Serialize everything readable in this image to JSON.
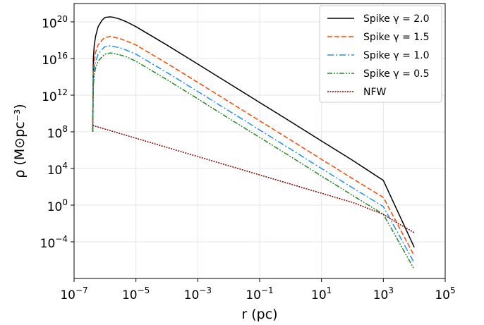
{
  "chart_data": {
    "type": "line",
    "xlabel": "r (pc)",
    "ylabel": "ρ (M⊙pc⁻³)",
    "xscale": "log",
    "yscale": "log",
    "xlim": [
      1e-07,
      100000.0
    ],
    "ylim": [
      1e-08,
      1e+22
    ],
    "grid": true,
    "legend_position": "top-right",
    "x_ticks": [
      {
        "value": 1e-07,
        "base": "10",
        "exp": "−7"
      },
      {
        "value": 1e-05,
        "base": "10",
        "exp": "−5"
      },
      {
        "value": 0.001,
        "base": "10",
        "exp": "−3"
      },
      {
        "value": 0.1,
        "base": "10",
        "exp": "−1"
      },
      {
        "value": 10.0,
        "base": "10",
        "exp": "1"
      },
      {
        "value": 1000.0,
        "base": "10",
        "exp": "3"
      },
      {
        "value": 100000.0,
        "base": "10",
        "exp": "5"
      }
    ],
    "y_ticks": [
      {
        "value": 0.0001,
        "base": "10",
        "exp": "−4"
      },
      {
        "value": 1.0,
        "base": "10",
        "exp": "0"
      },
      {
        "value": 10000.0,
        "base": "10",
        "exp": "4"
      },
      {
        "value": 100000000.0,
        "base": "10",
        "exp": "8"
      },
      {
        "value": 1000000000000.0,
        "base": "10",
        "exp": "12"
      },
      {
        "value": 1e+16,
        "base": "10",
        "exp": "16"
      },
      {
        "value": 1e+20,
        "base": "10",
        "exp": "20"
      }
    ],
    "series": [
      {
        "name": "Spike γ = 2.0",
        "color": "#000000",
        "style": "solid",
        "x": [
          4e-07,
          4.2e-07,
          4.5e-07,
          5e-07,
          6e-07,
          8e-07,
          1e-06,
          1.5e-06,
          2e-06,
          3e-06,
          5e-06,
          1e-05,
          0.0001,
          0.001,
          0.01,
          0.1,
          1.0,
          10.0,
          100.0,
          1000.0,
          10000.0
        ],
        "y": [
          100000000.0,
          1e+16,
          3e+17,
          3e+18,
          3e+19,
          1.5e+20,
          3e+20,
          3.5e+20,
          3e+20,
          2e+20,
          1e+20,
          3e+19,
          3e+17,
          2500000000000000.0,
          20000000000000.0,
          160000000000.0,
          1300000000.0,
          10000000.0,
          80000.0,
          500.0,
          2.5e-05
        ]
      },
      {
        "name": "Spike γ = 1.5",
        "color": "#ff4500",
        "style": "dashed",
        "x": [
          4e-07,
          4.2e-07,
          4.5e-07,
          5e-07,
          6e-07,
          8e-07,
          1e-06,
          1.5e-06,
          2e-06,
          3e-06,
          5e-06,
          1e-05,
          0.0001,
          0.001,
          0.01,
          0.1,
          1.0,
          10.0,
          100.0,
          1000.0,
          10000.0
        ],
        "y": [
          100000000.0,
          300000000000000.0,
          5000000000000000.0,
          5e+16,
          3e+17,
          1e+18,
          2e+18,
          2.5e+18,
          2e+18,
          1.5e+18,
          8e+17,
          3e+17,
          3000000000000000.0,
          25000000000000.0,
          200000000000.0,
          1600000000.0,
          13000000.0,
          100000.0,
          800.0,
          7,
          3e-06
        ]
      },
      {
        "name": "Spike γ = 1.0",
        "color": "#1e90ff",
        "style": "dashdot",
        "x": [
          4e-07,
          4.2e-07,
          4.5e-07,
          5e-07,
          6e-07,
          8e-07,
          1e-06,
          1.5e-06,
          2e-06,
          3e-06,
          5e-06,
          1e-05,
          0.0001,
          0.001,
          0.01,
          0.1,
          1.0,
          10.0,
          100.0,
          1000.0,
          10000.0
        ],
        "y": [
          100000000.0,
          50000000000000.0,
          800000000000000.0,
          5000000000000000.0,
          3e+16,
          1e+17,
          2e+17,
          2.5e+17,
          2e+17,
          1.5e+17,
          8e+16,
          3e+16,
          300000000000000.0,
          2500000000000.0,
          20000000000.0,
          160000000.0,
          1300000.0,
          10000.0,
          80.0,
          0.7,
          5e-07
        ]
      },
      {
        "name": "Spike γ = 0.5",
        "color": "#228b22",
        "style": "dashdotdot",
        "x": [
          4e-07,
          4.2e-07,
          4.5e-07,
          5e-07,
          6e-07,
          8e-07,
          1e-06,
          1.5e-06,
          2e-06,
          3e-06,
          5e-06,
          1e-05,
          0.0001,
          0.001,
          0.01,
          0.1,
          1.0,
          10.0,
          100.0,
          1000.0,
          10000.0
        ],
        "y": [
          100000000.0,
          10000000000000.0,
          200000000000000.0,
          1000000000000000.0,
          5000000000000000.0,
          1.5e+16,
          3e+16,
          4e+16,
          3.5e+16,
          2.5e+16,
          1.5e+16,
          5000000000000000.0,
          50000000000000.0,
          400000000000.0,
          3000000000.0,
          25000000.0,
          200000.0,
          1500.0,
          12.0,
          0.1,
          1e-07
        ]
      },
      {
        "name": "NFW",
        "color": "#8b0000",
        "style": "dotted",
        "x": [
          4e-07,
          1e-06,
          1e-05,
          0.0001,
          0.001,
          0.01,
          0.1,
          1.0,
          10.0,
          100.0,
          1000.0,
          3000.0,
          10000.0
        ],
        "y": [
          500000000.0,
          200000000.0,
          20000000.0,
          2000000.0,
          200000.0,
          20000.0,
          2000.0,
          200.0,
          20,
          2,
          0.1,
          0.01,
          0.001
        ]
      }
    ]
  }
}
